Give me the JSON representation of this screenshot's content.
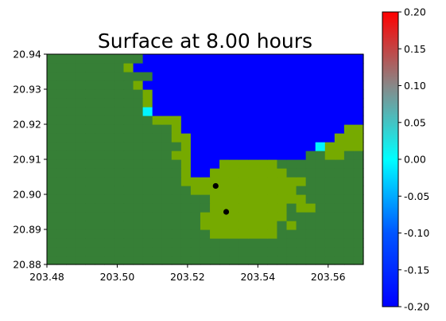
{
  "chart_data": {
    "type": "heatmap",
    "title": "Surface at 8.00 hours",
    "xlabel": "",
    "ylabel": "",
    "xlim": [
      203.48,
      203.57
    ],
    "ylim": [
      20.88,
      20.94
    ],
    "x_ticks": [
      "203.48",
      "203.50",
      "203.52",
      "203.54",
      "203.56"
    ],
    "x_tick_values": [
      203.48,
      203.5,
      203.52,
      203.54,
      203.56
    ],
    "y_ticks": [
      "20.88",
      "20.89",
      "20.90",
      "20.91",
      "20.92",
      "20.93",
      "20.94"
    ],
    "y_tick_values": [
      20.88,
      20.89,
      20.9,
      20.91,
      20.92,
      20.93,
      20.94
    ],
    "colorbar": {
      "min": -0.2,
      "max": 0.2,
      "ticks": [
        "0.20",
        "0.15",
        "0.10",
        "0.05",
        "0.00",
        "-0.05",
        "-0.10",
        "-0.15",
        "-0.20"
      ],
      "tick_values": [
        0.2,
        0.15,
        0.1,
        0.05,
        0.0,
        -0.05,
        -0.1,
        -0.15,
        -0.2
      ],
      "colors": [
        "#0000ff",
        "#0055ff",
        "#00ffff",
        "#888888",
        "#ff0000"
      ]
    },
    "grid": {
      "nx": 33,
      "ny": 24,
      "legend": {
        "L": "land (dark green)",
        "S": "shallow land (light green)",
        "W": "water surface -0.20",
        "C": "water surface -0.01"
      },
      "rows": [
        "LLLLLLLLLLLLLLLLLLLLLLLLLLLLLLLLL",
        "LLLLLLLLLLLLLLLLLLLLLLLLLLLLLLLLL",
        "LLLLLLLLLLLLLLLLLLLLLLLLLLLLLLLLL",
        "LLLLLLLLLLLLLLLLLSSSSSSSLLLLLLLLL",
        "LLLLLLLLLLLLLLLLSSSSSSSSLSLLLLLLL",
        "LLLLLLLLLLLLLLLLSSSSSSSSSLLLLLLLL",
        "LLLLLLLLLLLLLLLLLSSSSSSSSLSSLLLLL",
        "LLLLLLLLLLLLLLLLLSSSSSSSSSSLLLLLL",
        "LLLLLLLLLLLLLLLSSSSSSSSSSSLLLLLLL",
        "LLLLLLLLLLLLLLSSSSSSSSSSSSSLLLLLL",
        "LLLLLLLLLLLLLLSWWSSSSSSSSLLLLLLLL",
        "LLLLLLLLLLLLLLSWWWSSSSSSLLLLLLLLL",
        "LLLLLLLLLLLLLSSWWWWWWWWWWWWLLSSLL",
        "LLLLLLLLLLLLLLSWWWWWWWWWWWWWCSSSS",
        "LLLLLLLLLLLLLSSWWWWWWWWWWWWWWWSSS",
        "LLLLLLLLLLLLLSWWWWWWWWWWWWWWWWWSS",
        "LLLLLLLLLLLSSSWWWWWWWWWWWWWWWWWWW",
        "LLLLLLLLLLCWWWWWWWWWWWWWWWWWWWWWW",
        "LLLLLLLLLLSWWWWWWWWWWWWWWWWWWWWWW",
        "LLLLLLLLLLSWWWWWWWWWWWWWWWWWWWWWW",
        "LLLLLLLLLSWWWWWWWWWWWWWWWWWWWWWWW",
        "LLLLLLLLLLLWWWWWWWWWWWWWWWWWWWWWW",
        "LLLLLLLLSWWWWWWWWWWWWWWWWWWWWWWWW",
        "LLLLLLLLLLWWWWWWWWWWWWWWWWWWWWWWW"
      ]
    },
    "points": [
      {
        "x": 203.528,
        "y": 20.9024
      },
      {
        "x": 203.531,
        "y": 20.895
      }
    ],
    "colors": {
      "land": "#367f36",
      "shallow": "#76aa00",
      "water": "#0000ff",
      "cyan": "#00f5ff",
      "marker": "#000000"
    }
  }
}
